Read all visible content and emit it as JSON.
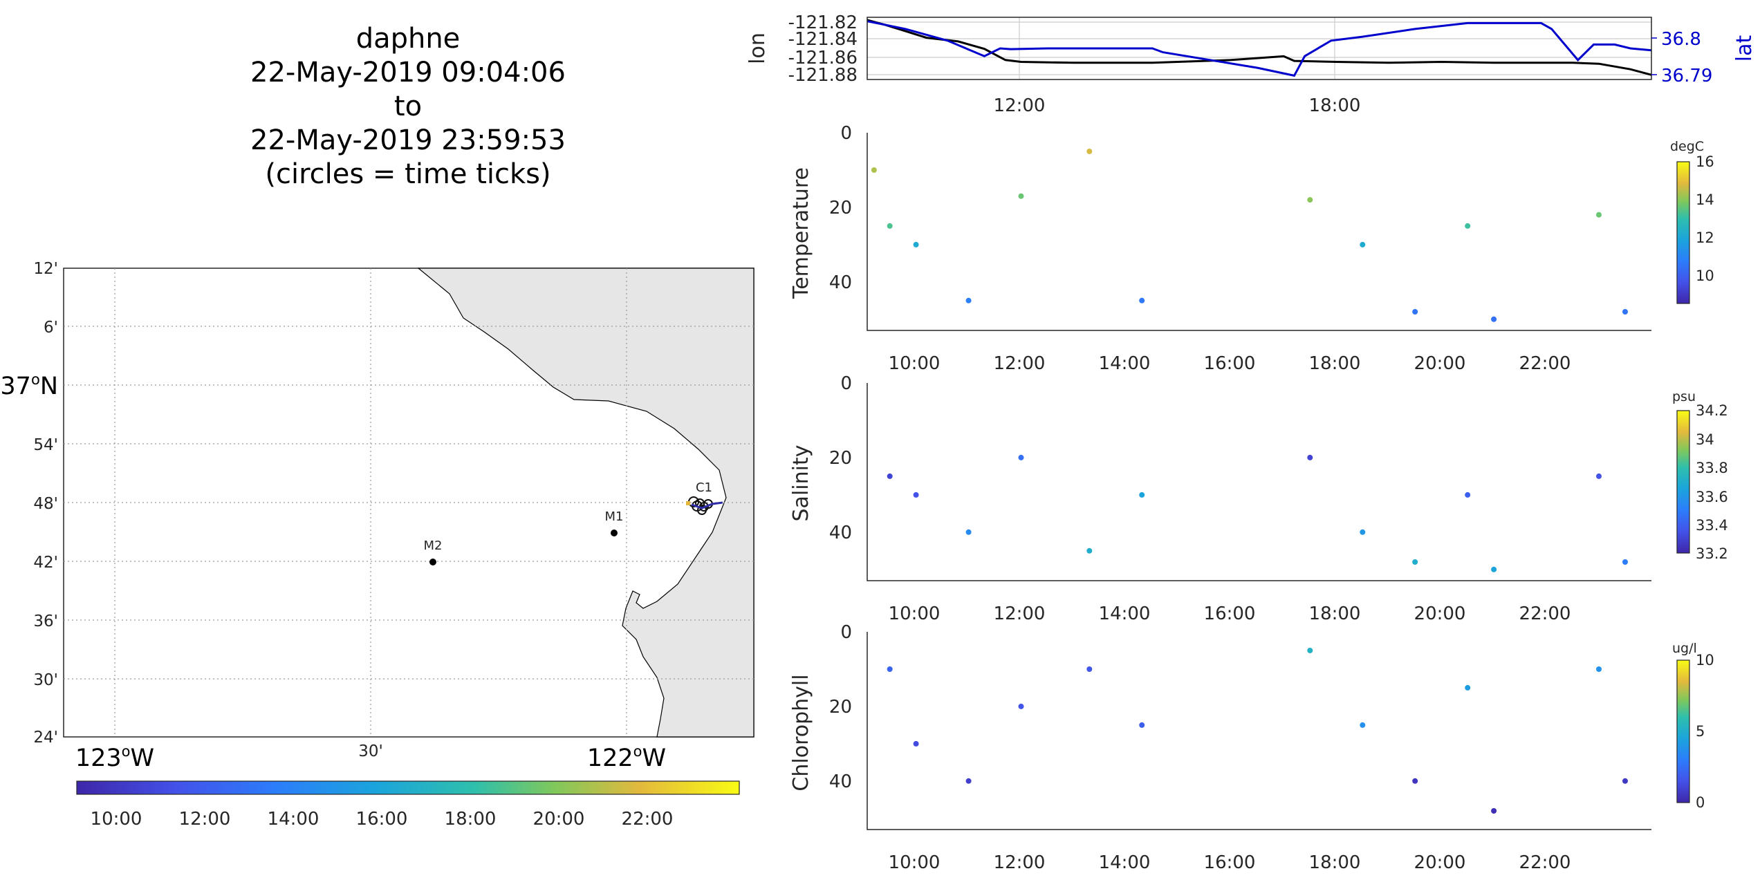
{
  "title_lines": [
    "daphne",
    "22-May-2019 09:04:06",
    "to",
    "22-May-2019 23:59:53",
    "(circles = time ticks)"
  ],
  "colors": {
    "lon_line": "#000000",
    "lat_line": "#0000cc",
    "land": "#e6e6e6",
    "grid": "#b0b0b0"
  },
  "map": {
    "lat_tick_labels": [
      "12'",
      "6'",
      "37oN",
      "54'",
      "48'",
      "42'",
      "36'",
      "30'",
      "24'"
    ],
    "lon_tick_labels": [
      "123oW",
      "30'",
      "122oW"
    ],
    "moorings": [
      {
        "name": "M2",
        "lon": -122.39,
        "lat": 36.7
      },
      {
        "name": "M1",
        "lon": -122.03,
        "lat": 36.75
      },
      {
        "name": "C1",
        "lon": -121.85,
        "lat": 36.797
      }
    ],
    "colorbar_tick_labels": [
      "10:00",
      "12:00",
      "14:00",
      "16:00",
      "18:00",
      "20:00",
      "22:00"
    ]
  },
  "chart_data": [
    {
      "type": "line",
      "ylabel": "lon",
      "y2label": "lat",
      "x_ticks": [
        "12:00",
        "18:00"
      ],
      "y_ticks": [
        "-121.82",
        "-121.84",
        "-121.86",
        "-121.88"
      ],
      "y2_ticks": [
        "36.8",
        "36.79"
      ],
      "xlim": [
        9.07,
        24.0
      ],
      "ylim": [
        -121.885,
        -121.818
      ],
      "y2lim": [
        36.7885,
        36.8045
      ],
      "series": [
        {
          "name": "lon",
          "axis": "left",
          "x": [
            9.07,
            9.4,
            9.8,
            10.2,
            10.8,
            11.3,
            11.7,
            12.0,
            13.0,
            14.5,
            16.0,
            17.0,
            17.2,
            18.0,
            19.0,
            20.0,
            21.0,
            22.0,
            22.5,
            23.0,
            23.6,
            24.0
          ],
          "y": [
            -121.821,
            -121.826,
            -121.833,
            -121.84,
            -121.844,
            -121.852,
            -121.864,
            -121.866,
            -121.867,
            -121.867,
            -121.864,
            -121.86,
            -121.865,
            -121.866,
            -121.867,
            -121.866,
            -121.867,
            -121.867,
            -121.867,
            -121.868,
            -121.874,
            -121.88
          ]
        },
        {
          "name": "lat",
          "axis": "right",
          "x": [
            9.07,
            9.8,
            10.6,
            11.3,
            11.6,
            11.8,
            12.5,
            13.0,
            14.5,
            14.7,
            16.5,
            17.2,
            17.4,
            17.9,
            18.5,
            19.5,
            20.5,
            21.0,
            21.9,
            22.1,
            22.6,
            22.9,
            23.3,
            23.6,
            24.0
          ],
          "y": [
            36.8035,
            36.8015,
            36.7985,
            36.7945,
            36.7965,
            36.7963,
            36.7965,
            36.7965,
            36.7965,
            36.7955,
            36.7915,
            36.7895,
            36.7945,
            36.7985,
            36.7995,
            36.8015,
            36.803,
            36.803,
            36.803,
            36.8015,
            36.7935,
            36.7975,
            36.7975,
            36.7965,
            36.796
          ]
        }
      ]
    },
    {
      "type": "scatter",
      "ylabel": "Temperature",
      "colorbar_label": "degC",
      "colorbar_ticks": [
        "16",
        "14",
        "12",
        "10"
      ],
      "clim": [
        8.6,
        16.0
      ],
      "x_ticks": [
        "10:00",
        "12:00",
        "14:00",
        "16:00",
        "18:00",
        "20:00",
        "22:00"
      ],
      "y_ticks": [
        "0",
        "20",
        "40"
      ],
      "xlim": [
        9.07,
        24.0
      ],
      "ylim": [
        0,
        53
      ],
      "legend": "none",
      "sample_points": [
        {
          "time": 9.2,
          "depth": 10,
          "value": 14.4
        },
        {
          "time": 9.5,
          "depth": 25,
          "value": 13.2
        },
        {
          "time": 10.0,
          "depth": 30,
          "value": 12.0
        },
        {
          "time": 11.0,
          "depth": 45,
          "value": 10.8
        },
        {
          "time": 12.0,
          "depth": 17,
          "value": 13.6
        },
        {
          "time": 13.3,
          "depth": 5,
          "value": 14.8
        },
        {
          "time": 14.3,
          "depth": 45,
          "value": 10.6
        },
        {
          "time": 17.5,
          "depth": 18,
          "value": 14.0
        },
        {
          "time": 18.5,
          "depth": 30,
          "value": 12.0
        },
        {
          "time": 19.5,
          "depth": 48,
          "value": 10.5
        },
        {
          "time": 20.5,
          "depth": 25,
          "value": 13.0
        },
        {
          "time": 21.0,
          "depth": 50,
          "value": 10.4
        },
        {
          "time": 23.0,
          "depth": 22,
          "value": 13.6
        },
        {
          "time": 23.5,
          "depth": 48,
          "value": 10.5
        }
      ]
    },
    {
      "type": "scatter",
      "ylabel": "Salinity",
      "colorbar_label": "psu",
      "colorbar_ticks": [
        "34.2",
        "34",
        "33.8",
        "33.6",
        "33.4",
        "33.2"
      ],
      "clim": [
        33.2,
        34.25
      ],
      "x_ticks": [
        "10:00",
        "12:00",
        "14:00",
        "16:00",
        "18:00",
        "20:00",
        "22:00"
      ],
      "y_ticks": [
        "0",
        "20",
        "40"
      ],
      "xlim": [
        9.07,
        24.0
      ],
      "ylim": [
        0,
        53
      ],
      "legend": "none",
      "sample_points": [
        {
          "time": 9.5,
          "depth": 25,
          "value": 33.3
        },
        {
          "time": 10.0,
          "depth": 30,
          "value": 33.35
        },
        {
          "time": 11.0,
          "depth": 40,
          "value": 33.55
        },
        {
          "time": 12.0,
          "depth": 20,
          "value": 33.45
        },
        {
          "time": 13.3,
          "depth": 45,
          "value": 33.7
        },
        {
          "time": 14.3,
          "depth": 30,
          "value": 33.65
        },
        {
          "time": 17.5,
          "depth": 20,
          "value": 33.3
        },
        {
          "time": 18.5,
          "depth": 40,
          "value": 33.6
        },
        {
          "time": 19.5,
          "depth": 48,
          "value": 33.7
        },
        {
          "time": 20.5,
          "depth": 30,
          "value": 33.4
        },
        {
          "time": 21.0,
          "depth": 50,
          "value": 33.65
        },
        {
          "time": 23.0,
          "depth": 25,
          "value": 33.35
        },
        {
          "time": 23.5,
          "depth": 48,
          "value": 33.5
        }
      ]
    },
    {
      "type": "scatter",
      "ylabel": "Chlorophyll",
      "colorbar_label": "ug/l",
      "colorbar_ticks": [
        "10",
        "5",
        "0"
      ],
      "clim": [
        0,
        10
      ],
      "x_ticks": [
        "10:00",
        "12:00",
        "14:00",
        "16:00",
        "18:00",
        "20:00",
        "22:00"
      ],
      "y_ticks": [
        "0",
        "20",
        "40"
      ],
      "xlim": [
        9.07,
        24.0
      ],
      "ylim": [
        0,
        53
      ],
      "legend": "none",
      "sample_points": [
        {
          "time": 9.5,
          "depth": 10,
          "value": 2.0
        },
        {
          "time": 10.0,
          "depth": 30,
          "value": 1.2
        },
        {
          "time": 11.0,
          "depth": 40,
          "value": 0.8
        },
        {
          "time": 12.0,
          "depth": 20,
          "value": 1.5
        },
        {
          "time": 13.3,
          "depth": 10,
          "value": 1.6
        },
        {
          "time": 14.3,
          "depth": 25,
          "value": 1.8
        },
        {
          "time": 17.5,
          "depth": 5,
          "value": 5.0
        },
        {
          "time": 18.5,
          "depth": 25,
          "value": 3.5
        },
        {
          "time": 19.5,
          "depth": 40,
          "value": 0.5
        },
        {
          "time": 20.5,
          "depth": 15,
          "value": 4.0
        },
        {
          "time": 21.0,
          "depth": 48,
          "value": 0.3
        },
        {
          "time": 23.0,
          "depth": 10,
          "value": 3.5
        },
        {
          "time": 23.5,
          "depth": 40,
          "value": 0.6
        }
      ]
    }
  ]
}
